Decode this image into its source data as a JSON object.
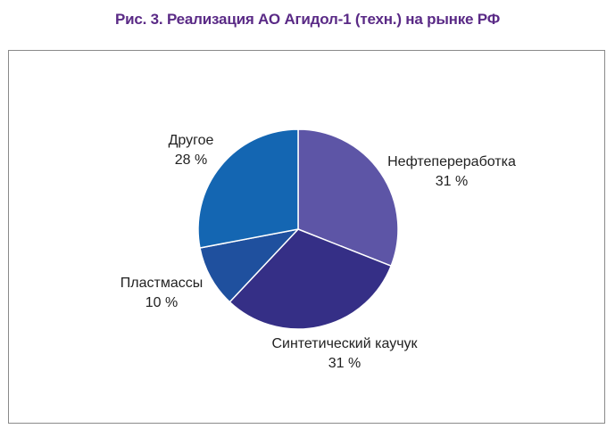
{
  "figure": {
    "title": "Рис. 3. Реализация АО Агидол-1 (техн.) на рынке РФ"
  },
  "chart_data": {
    "type": "pie",
    "title": "Рис. 3. Реализация АО Агидол-1 (техн.) на рынке РФ",
    "start_angle_deg": 0,
    "direction": "clockwise",
    "slices": [
      {
        "label": "Нефтепереработка",
        "value": 31,
        "value_label": "31 %",
        "color": "#5d55a6"
      },
      {
        "label": "Синтетический каучук",
        "value": 31,
        "value_label": "31 %",
        "color": "#352f86"
      },
      {
        "label": "Пластмассы",
        "value": 10,
        "value_label": "10 %",
        "color": "#1f509e"
      },
      {
        "label": "Другое",
        "value": 28,
        "value_label": "28 %",
        "color": "#1466b2"
      }
    ]
  }
}
